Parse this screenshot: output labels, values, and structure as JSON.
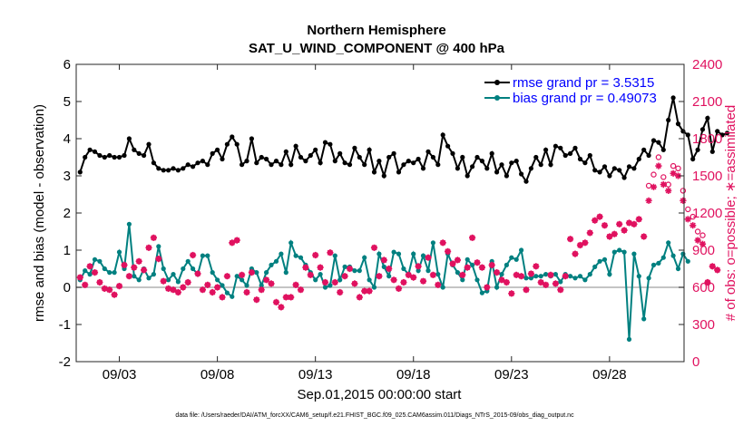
{
  "chart_data": {
    "type": "line",
    "title_line1": "Northern Hemisphere",
    "title_line2": "SAT_U_WIND_COMPONENT @ 400 hPa",
    "xlabel": "Sep.01,2015 00:00:00 start",
    "ylabel_left": "rmse and bias (model - observation)",
    "ylabel_right": "# of obs: o=possible; ∗=assimilated",
    "ylim_left": [
      -2,
      6
    ],
    "ylim_right": [
      0,
      2400
    ],
    "xlim": [
      0.8,
      31.8
    ],
    "yticks_left": [
      "-2",
      "-1",
      "0",
      "1",
      "2",
      "3",
      "4",
      "5",
      "6"
    ],
    "yticks_right": [
      "0",
      "300",
      "600",
      "900",
      "1200",
      "1500",
      "1800",
      "2100",
      "2400"
    ],
    "xtick_labels": [
      "09/03",
      "09/08",
      "09/13",
      "09/18",
      "09/23",
      "09/28"
    ],
    "xtick_positions": [
      3,
      8,
      13,
      18,
      23,
      28
    ],
    "legend_position": "top-right",
    "rmse_legend": "rmse grand pr = 3.5315",
    "bias_legend": "bias grand pr = 0.49073",
    "zero_line": true,
    "series": [
      {
        "name": "rmse",
        "color": "#000000",
        "x_start": 1.0,
        "x_step": 0.25,
        "values": [
          3.1,
          3.5,
          3.7,
          3.65,
          3.55,
          3.5,
          3.55,
          3.5,
          3.5,
          3.55,
          4.0,
          3.7,
          3.6,
          3.55,
          3.85,
          3.35,
          3.2,
          3.15,
          3.15,
          3.2,
          3.15,
          3.2,
          3.3,
          3.25,
          3.35,
          3.4,
          3.3,
          3.6,
          3.7,
          3.45,
          3.85,
          4.05,
          3.85,
          3.3,
          3.4,
          4.0,
          3.35,
          3.5,
          3.45,
          3.3,
          3.4,
          3.3,
          3.65,
          3.3,
          3.8,
          3.5,
          3.4,
          3.55,
          3.7,
          3.35,
          3.9,
          3.85,
          3.4,
          3.6,
          3.35,
          3.3,
          3.75,
          3.5,
          3.3,
          3.7,
          3.1,
          3.4,
          3.0,
          3.5,
          3.6,
          3.1,
          3.3,
          3.4,
          3.35,
          3.45,
          3.2,
          3.65,
          3.5,
          3.3,
          4.1,
          3.8,
          3.6,
          3.2,
          3.5,
          3.0,
          3.25,
          3.5,
          3.4,
          3.2,
          3.6,
          3.1,
          3.3,
          3.0,
          3.35,
          3.4,
          3.05,
          2.85,
          3.2,
          3.5,
          3.3,
          3.7,
          3.3,
          3.8,
          3.75,
          3.55,
          3.6,
          3.75,
          3.45,
          3.35,
          3.55,
          3.15,
          3.1,
          3.25,
          3.0,
          3.2,
          3.15,
          2.95,
          3.25,
          3.2,
          3.45,
          3.7,
          3.55,
          3.95,
          3.9,
          3.7,
          4.5,
          5.1,
          4.4,
          4.2,
          4.1,
          3.45,
          3.7,
          4.25,
          4.55,
          3.65,
          4.2,
          4.1,
          4.15
        ]
      },
      {
        "name": "bias",
        "color": "#008080",
        "x_start": 1.0,
        "x_step": 0.25,
        "values": [
          0.2,
          0.45,
          0.35,
          0.75,
          0.7,
          0.5,
          0.4,
          0.4,
          0.95,
          0.5,
          1.7,
          0.3,
          0.2,
          0.5,
          0.25,
          0.35,
          1.1,
          0.5,
          0.2,
          0.35,
          0.15,
          0.5,
          0.7,
          0.5,
          0.35,
          0.85,
          0.85,
          0.4,
          0.2,
          0.05,
          -0.15,
          -0.25,
          0.3,
          0.2,
          0.05,
          0.5,
          0.4,
          0.05,
          0.4,
          0.6,
          0.7,
          0.9,
          0.4,
          1.2,
          0.85,
          0.8,
          0.6,
          0.4,
          0.2,
          0.35,
          0.0,
          0.05,
          0.85,
          0.2,
          0.55,
          0.55,
          0.45,
          0.45,
          0.8,
          0.2,
          0.0,
          0.9,
          0.55,
          0.3,
          0.95,
          0.9,
          0.5,
          0.35,
          0.9,
          0.45,
          0.85,
          0.45,
          1.2,
          0.35,
          0.0,
          0.9,
          0.6,
          0.4,
          0.2,
          0.75,
          0.6,
          0.2,
          -0.15,
          -0.1,
          0.7,
          0.0,
          0.35,
          0.6,
          0.8,
          0.75,
          1.0,
          0.25,
          0.25,
          0.3,
          0.3,
          0.35,
          0.3,
          0.35,
          0.15,
          0.35,
          0.3,
          0.25,
          0.3,
          0.2,
          0.35,
          0.55,
          0.7,
          0.75,
          0.35,
          0.95,
          1.0,
          0.95,
          -1.4,
          0.9,
          0.3,
          -0.85,
          0.25,
          0.6,
          0.65,
          0.8,
          1.2,
          0.85,
          0.5,
          0.9,
          0.7
        ]
      },
      {
        "name": "obs possible",
        "color": "#e0115f",
        "marker": "o",
        "x_start": 1.0,
        "x_step": 0.25,
        "values": [
          680,
          620,
          770,
          720,
          640,
          590,
          580,
          540,
          610,
          780,
          690,
          760,
          810,
          740,
          920,
          1000,
          830,
          650,
          590,
          580,
          560,
          600,
          640,
          860,
          710,
          580,
          620,
          560,
          600,
          520,
          690,
          960,
          980,
          700,
          560,
          720,
          500,
          580,
          660,
          630,
          480,
          440,
          520,
          520,
          620,
          580,
          760,
          700,
          860,
          760,
          640,
          880,
          640,
          560,
          690,
          750,
          630,
          520,
          570,
          570,
          920,
          690,
          820,
          750,
          660,
          590,
          640,
          700,
          680,
          770,
          650,
          840,
          700,
          620,
          960,
          890,
          790,
          820,
          700,
          760,
          1000,
          800,
          760,
          600,
          780,
          720,
          660,
          640,
          550,
          700,
          690,
          580,
          710,
          770,
          640,
          620,
          700,
          630,
          580,
          690,
          990,
          870,
          940,
          960,
          1040,
          1140,
          1170,
          1100,
          1010,
          1030,
          1110,
          1060,
          1120,
          1110,
          1150,
          1010,
          1420,
          1510,
          1650,
          1490,
          1430,
          1580,
          1560,
          1380,
          1230,
          1170,
          1050,
          1020,
          640,
          770,
          740
        ]
      },
      {
        "name": "obs assimilated",
        "color": "#e0115f",
        "marker": "*",
        "x_start": 1.0,
        "x_step": 0.25,
        "values": [
          680,
          620,
          770,
          720,
          640,
          590,
          580,
          540,
          610,
          780,
          690,
          760,
          810,
          740,
          920,
          1000,
          830,
          650,
          590,
          580,
          560,
          600,
          640,
          860,
          710,
          580,
          620,
          560,
          600,
          520,
          690,
          960,
          980,
          700,
          560,
          720,
          500,
          580,
          660,
          630,
          480,
          440,
          520,
          520,
          620,
          580,
          760,
          700,
          860,
          760,
          640,
          880,
          640,
          560,
          690,
          750,
          630,
          520,
          570,
          570,
          920,
          690,
          820,
          750,
          660,
          590,
          640,
          700,
          680,
          770,
          650,
          840,
          700,
          620,
          960,
          890,
          790,
          820,
          700,
          760,
          1000,
          800,
          760,
          600,
          780,
          720,
          660,
          640,
          550,
          700,
          690,
          580,
          710,
          770,
          640,
          620,
          700,
          630,
          580,
          690,
          990,
          870,
          940,
          960,
          1040,
          1140,
          1170,
          1100,
          1010,
          1030,
          1110,
          1060,
          1120,
          1110,
          1150,
          1010,
          1300,
          1410,
          1580,
          1430,
          1380,
          1520,
          1500,
          1300,
          1150,
          1100,
          980,
          950,
          640,
          770,
          740
        ]
      }
    ],
    "footer": "data file: /Users/raeder/DAI/ATM_forcXX/CAM6_setup/f.e21.FHIST_BGC.f09_025.CAM6assim.011/Diags_NTrS_2015-09/obs_diag_output.nc"
  }
}
